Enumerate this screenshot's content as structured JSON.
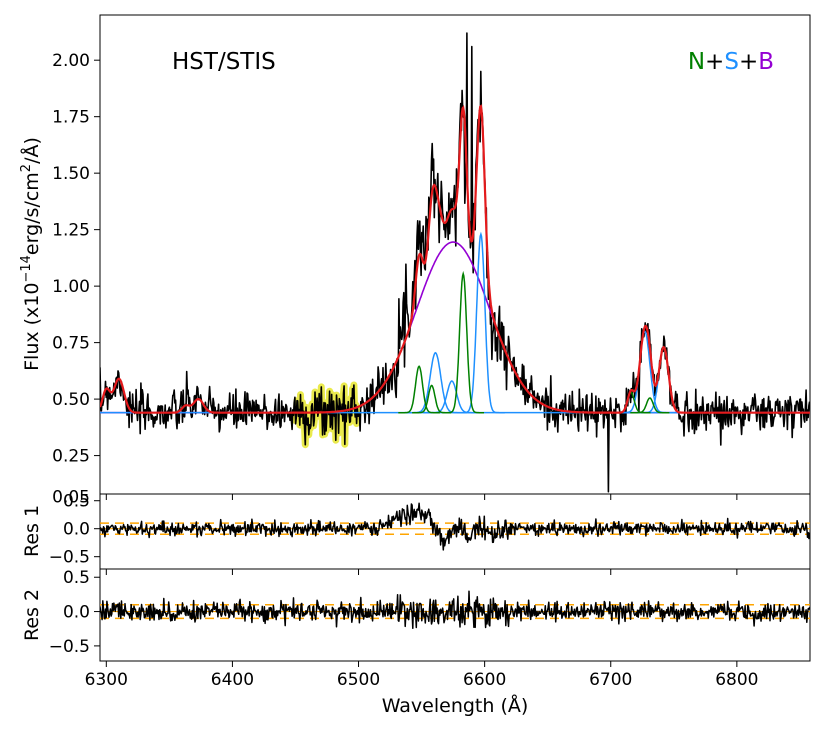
{
  "chart_data": [
    {
      "panel": "main",
      "type": "line",
      "title": "",
      "annotation": "HST/STIS",
      "legend": {
        "placement": "top-right",
        "parts": [
          {
            "text": "N",
            "color": "#008000"
          },
          {
            "text": "+",
            "color": "#000000"
          },
          {
            "text": "S",
            "color": "#1e90ff"
          },
          {
            "text": "+",
            "color": "#000000"
          },
          {
            "text": "B",
            "color": "#9400d3"
          }
        ]
      },
      "ylabel_parts": {
        "pre": "Flux (x10",
        "sup1": "−14",
        "mid": "erg/s/cm",
        "sup2": "2",
        "post": "/Å)"
      },
      "xlim": [
        6295,
        6858
      ],
      "ylim": [
        0.08,
        2.2
      ],
      "yticks": [
        0.25,
        0.5,
        0.75,
        1.0,
        1.25,
        1.5,
        1.75,
        2.0
      ],
      "ytick_labels": [
        "0.25",
        "0.50",
        "0.75",
        "1.00",
        "1.25",
        "1.50",
        "1.75",
        "2.00"
      ],
      "continuum": 0.44,
      "masked_region": [
        6450,
        6500
      ],
      "colors": {
        "data": "#000000",
        "total_fit": "#e41a1c",
        "narrow": "#008000",
        "secondary": "#1e90ff",
        "broad": "#9400d3",
        "masked": "#e6e62e"
      },
      "broad_component": {
        "center": 6575,
        "amplitude": 0.755,
        "sigma": 29
      },
      "narrow_components": [
        {
          "center": 6548,
          "amplitude": 0.205,
          "sigma": 2.8
        },
        {
          "center": 6558,
          "amplitude": 0.12,
          "sigma": 2.6
        },
        {
          "center": 6583,
          "amplitude": 0.615,
          "sigma": 2.8
        },
        {
          "center": 6716,
          "amplitude": 0.09,
          "sigma": 2.6
        },
        {
          "center": 6731,
          "amplitude": 0.065,
          "sigma": 2.6
        }
      ],
      "secondary_components": [
        {
          "center": 6561,
          "amplitude": 0.265,
          "sigma": 4.2
        },
        {
          "center": 6574,
          "amplitude": 0.14,
          "sigma": 3.8
        },
        {
          "center": 6597,
          "amplitude": 0.79,
          "sigma": 3.2
        },
        {
          "center": 6727,
          "amplitude": 0.36,
          "sigma": 4.0
        },
        {
          "center": 6742,
          "amplitude": 0.29,
          "sigma": 3.8
        }
      ],
      "extra_fit_features": [
        {
          "center": 6300,
          "amplitude": 0.1,
          "sigma": 3
        },
        {
          "center": 6310,
          "amplitude": 0.15,
          "sigma": 4
        },
        {
          "center": 6363,
          "amplitude": 0.03,
          "sigma": 3
        },
        {
          "center": 6373,
          "amplitude": 0.06,
          "sigma": 4
        }
      ],
      "noise": {
        "sigma": 0.045,
        "spikes": [
          {
            "x": 6698,
            "y": 0.09
          },
          {
            "x": 6586,
            "y": 2.12
          },
          {
            "x": 6590,
            "y": 2.06
          }
        ]
      }
    },
    {
      "panel": "res1",
      "type": "line",
      "ylabel": "Res 1",
      "ylim": [
        -0.72,
        0.62
      ],
      "yticks": [
        -0.5,
        0.0,
        0.5
      ],
      "ytick_labels": [
        "−0.5",
        "0.0",
        "0.5"
      ],
      "overlapping_label": "0.05",
      "dashed_levels": [
        -0.1,
        0.1
      ],
      "solid_level": 0.0,
      "structure": [
        {
          "center": 6545,
          "amplitude": 0.28,
          "sigma": 14
        },
        {
          "center": 6568,
          "amplitude": -0.3,
          "sigma": 5
        },
        {
          "center": 6589,
          "amplitude": -0.2,
          "sigma": 4
        },
        {
          "center": 6597,
          "amplitude": 0.2,
          "sigma": 6
        },
        {
          "center": 6605,
          "amplitude": -0.15,
          "sigma": 6
        }
      ],
      "noise_sigma": 0.06
    },
    {
      "panel": "res2",
      "type": "line",
      "ylabel": "Res 2",
      "xlabel": "Wavelength (Å)",
      "ylim": [
        -0.72,
        0.62
      ],
      "yticks": [
        -0.5,
        0.0,
        0.5
      ],
      "ytick_labels": [
        "−0.5",
        "0.0",
        "0.5"
      ],
      "xticks": [
        6300,
        6400,
        6500,
        6600,
        6700,
        6800
      ],
      "xtick_labels": [
        "6300",
        "6400",
        "6500",
        "6600",
        "6700",
        "6800"
      ],
      "dashed_levels": [
        -0.1,
        0.1
      ],
      "solid_level": 0.0,
      "noise_sigma": 0.07
    }
  ]
}
